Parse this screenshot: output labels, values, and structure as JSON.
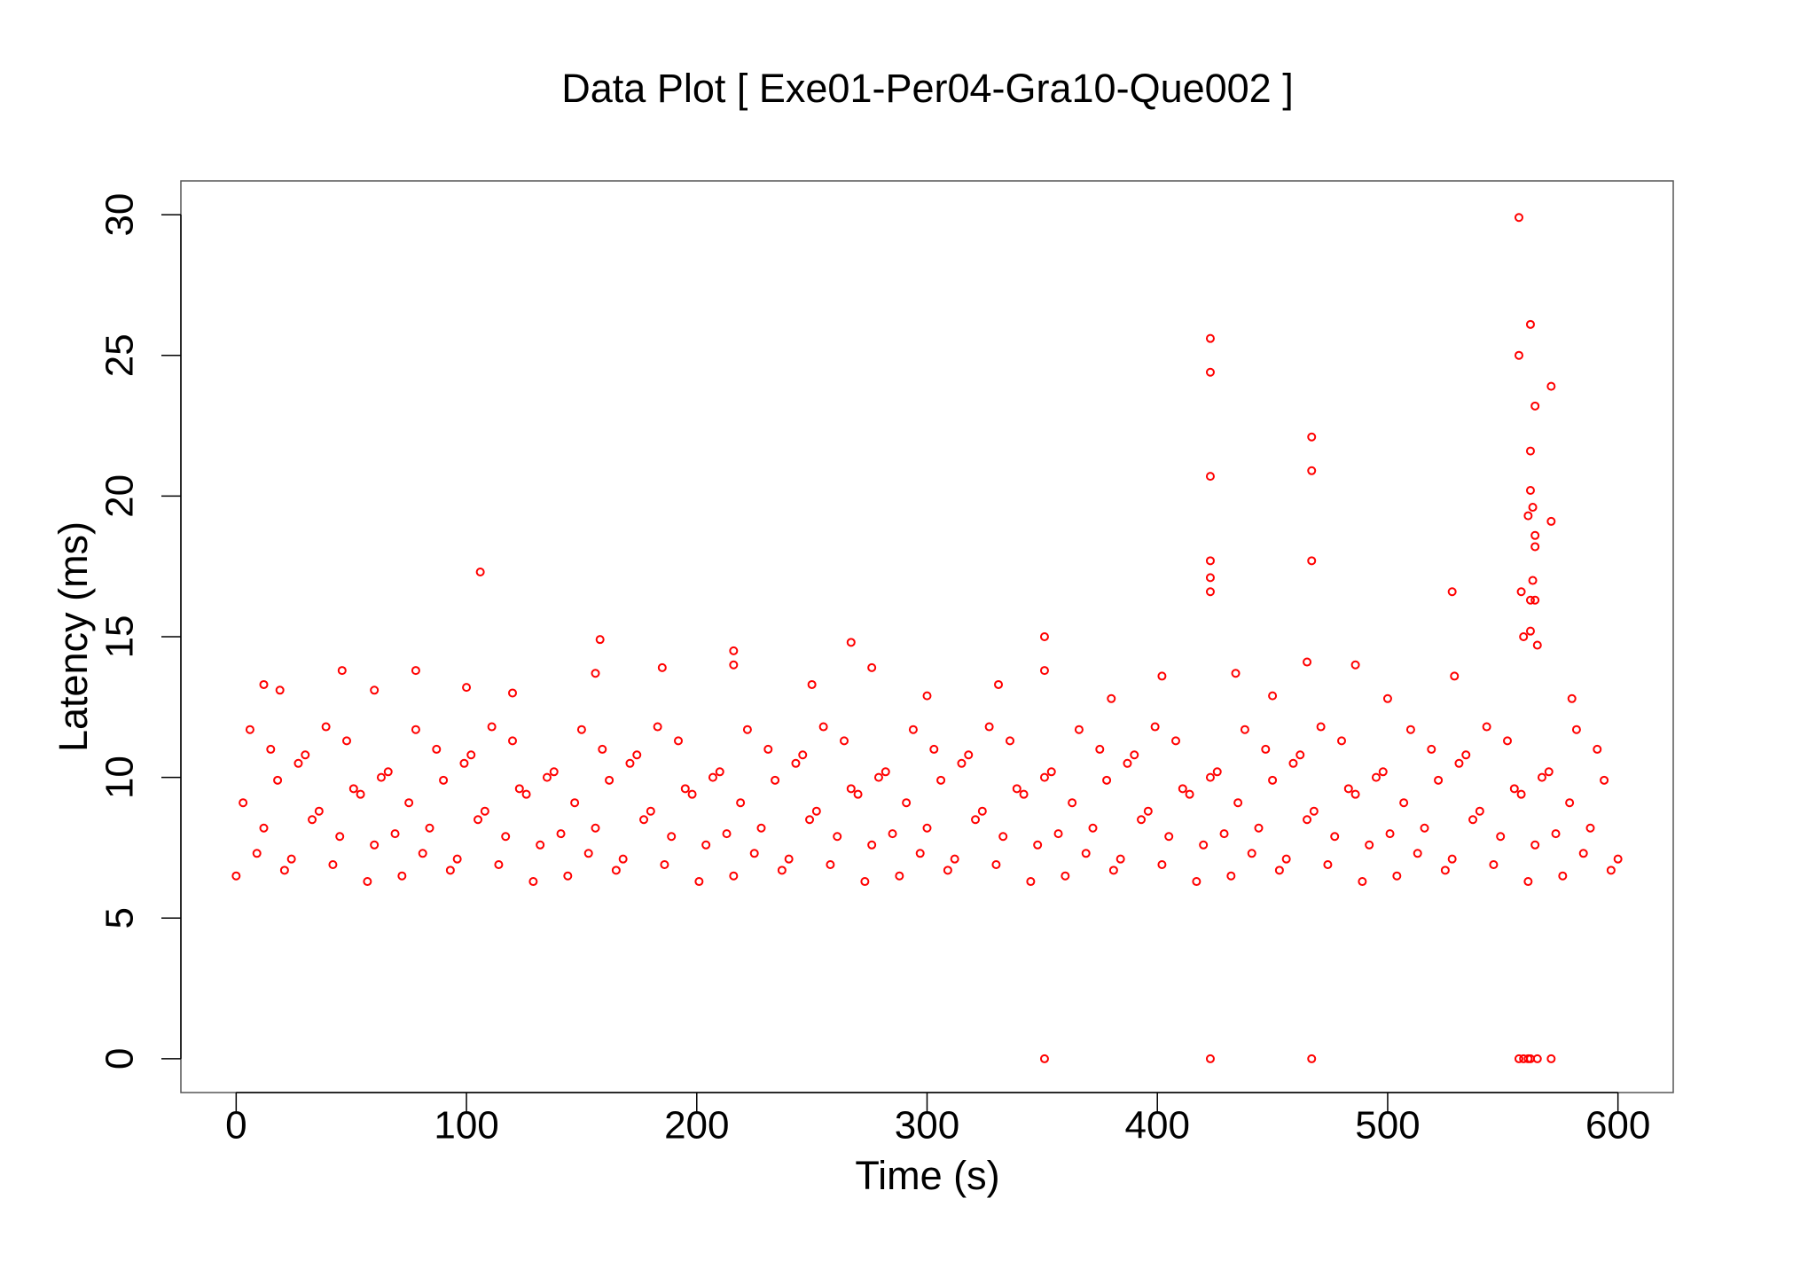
{
  "chart_data": {
    "type": "scatter",
    "title": "Data Plot [ Exe01-Per04-Gra10-Que002 ]",
    "x_label": "Time (s)",
    "y_label": "Latency (ms)",
    "xlim": [
      -24,
      624
    ],
    "ylim": [
      -1.2,
      31.2
    ],
    "xticks": [
      0,
      100,
      200,
      300,
      400,
      500,
      600
    ],
    "yticks": [
      0,
      5,
      10,
      15,
      20,
      25,
      30
    ],
    "x": [
      0,
      6,
      12,
      18,
      24,
      30,
      36,
      42,
      48,
      54,
      60,
      66,
      72,
      78,
      84,
      90,
      96,
      102,
      108,
      114,
      120,
      126,
      132,
      138,
      144,
      150,
      156,
      162,
      168,
      174,
      180,
      186,
      192,
      198,
      204,
      210,
      216,
      222,
      228,
      234,
      240,
      246,
      252,
      258,
      264,
      270,
      276,
      282,
      288,
      294,
      300,
      306,
      312,
      318,
      324,
      330,
      336,
      342,
      348,
      354,
      360,
      366,
      372,
      378,
      384,
      390,
      396,
      402,
      408,
      414,
      420,
      426,
      432,
      438,
      444,
      450,
      456,
      462,
      468,
      474,
      480,
      486,
      492,
      498,
      504,
      510,
      516,
      522,
      528,
      534,
      540,
      546,
      552,
      558,
      564,
      570,
      576,
      582,
      588,
      594,
      600,
      3,
      9,
      15,
      21,
      27,
      33,
      39,
      45,
      51,
      57,
      63,
      69,
      75,
      81,
      87,
      93,
      99,
      105,
      111,
      117,
      123,
      129,
      135,
      141,
      147,
      153,
      159,
      165,
      171,
      177,
      183,
      189,
      195,
      201,
      207,
      213,
      219,
      225,
      231,
      237,
      243,
      249,
      255,
      261,
      267,
      273,
      279,
      285,
      291,
      297,
      303,
      309,
      315,
      321,
      327,
      333,
      339,
      345,
      351,
      357,
      363,
      369,
      375,
      381,
      387,
      393,
      399,
      405,
      411,
      417,
      423,
      429,
      435,
      441,
      447,
      453,
      459,
      465,
      471,
      477,
      483,
      489,
      495,
      501,
      507,
      513,
      519,
      525,
      531,
      537,
      543,
      549,
      555,
      561,
      567,
      573,
      579,
      585,
      591,
      597,
      351,
      423,
      467,
      557,
      559,
      561,
      562,
      565,
      571,
      557,
      562,
      423,
      423,
      557,
      571,
      564,
      467,
      467,
      423,
      562,
      562,
      563,
      561,
      571,
      564,
      564,
      106,
      423,
      423,
      423,
      467,
      563,
      558,
      562,
      564,
      528,
      351,
      158,
      267,
      216,
      216,
      559,
      562,
      565,
      465,
      486,
      185,
      276,
      351,
      46,
      78,
      402,
      529,
      434,
      12,
      100,
      156,
      250,
      331,
      19,
      60,
      120,
      300,
      380,
      450,
      500,
      580
    ],
    "series": [
      {
        "name": "Latency",
        "color": "#ff0000",
        "values": [
          6.5,
          11.7,
          8.2,
          9.9,
          7.1,
          10.8,
          8.8,
          6.9,
          11.3,
          9.4,
          7.6,
          10.2,
          6.5,
          11.7,
          8.2,
          9.9,
          7.1,
          10.8,
          8.8,
          6.9,
          11.3,
          9.4,
          7.6,
          10.2,
          6.5,
          11.7,
          8.2,
          9.9,
          7.1,
          10.8,
          8.8,
          6.9,
          11.3,
          9.4,
          7.6,
          10.2,
          6.5,
          11.7,
          8.2,
          9.9,
          7.1,
          10.8,
          8.8,
          6.9,
          11.3,
          9.4,
          7.6,
          10.2,
          6.5,
          11.7,
          8.2,
          9.9,
          7.1,
          10.8,
          8.8,
          6.9,
          11.3,
          9.4,
          7.6,
          10.2,
          6.5,
          11.7,
          8.2,
          9.9,
          7.1,
          10.8,
          8.8,
          6.9,
          11.3,
          9.4,
          7.6,
          10.2,
          6.5,
          11.7,
          8.2,
          9.9,
          7.1,
          10.8,
          8.8,
          6.9,
          11.3,
          9.4,
          7.6,
          10.2,
          6.5,
          11.7,
          8.2,
          9.9,
          7.1,
          10.8,
          8.8,
          6.9,
          11.3,
          9.4,
          7.6,
          10.2,
          6.5,
          11.7,
          8.2,
          9.9,
          7.1,
          9.1,
          7.3,
          11.0,
          6.7,
          10.5,
          8.5,
          11.8,
          7.9,
          9.6,
          6.3,
          10.0,
          8.0,
          9.1,
          7.3,
          11.0,
          6.7,
          10.5,
          8.5,
          11.8,
          7.9,
          9.6,
          6.3,
          10.0,
          8.0,
          9.1,
          7.3,
          11.0,
          6.7,
          10.5,
          8.5,
          11.8,
          7.9,
          9.6,
          6.3,
          10.0,
          8.0,
          9.1,
          7.3,
          11.0,
          6.7,
          10.5,
          8.5,
          11.8,
          7.9,
          9.6,
          6.3,
          10.0,
          8.0,
          9.1,
          7.3,
          11.0,
          6.7,
          10.5,
          8.5,
          11.8,
          7.9,
          9.6,
          6.3,
          10.0,
          8.0,
          9.1,
          7.3,
          11.0,
          6.7,
          10.5,
          8.5,
          11.8,
          7.9,
          9.6,
          6.3,
          10.0,
          8.0,
          9.1,
          7.3,
          11.0,
          6.7,
          10.5,
          8.5,
          11.8,
          7.9,
          9.6,
          6.3,
          10.0,
          8.0,
          9.1,
          7.3,
          11.0,
          6.7,
          10.5,
          8.5,
          11.8,
          7.9,
          9.6,
          6.3,
          10.0,
          8.0,
          9.1,
          7.3,
          11.0,
          6.7,
          0,
          0,
          0,
          0,
          0,
          0,
          0,
          0,
          0,
          29.9,
          26.1,
          25.6,
          24.4,
          25.0,
          23.9,
          23.2,
          22.1,
          20.9,
          20.7,
          21.6,
          20.2,
          19.6,
          19.3,
          19.1,
          18.6,
          18.2,
          17.3,
          17.7,
          17.1,
          16.6,
          17.7,
          17.0,
          16.6,
          16.3,
          16.3,
          16.6,
          15.0,
          14.9,
          14.8,
          14.5,
          14.0,
          15.0,
          15.2,
          14.7,
          14.1,
          14.0,
          13.9,
          13.9,
          13.8,
          13.8,
          13.8,
          13.6,
          13.6,
          13.7,
          13.3,
          13.2,
          13.7,
          13.3,
          13.3,
          13.1,
          13.1,
          13.0,
          12.9,
          12.8,
          12.9,
          12.8,
          12.8
        ]
      }
    ]
  }
}
